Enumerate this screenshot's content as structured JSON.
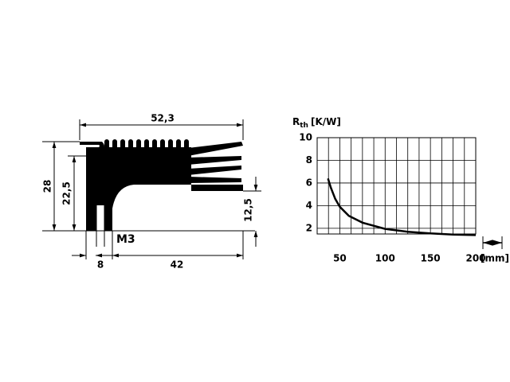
{
  "drawing": {
    "dimensions": {
      "overall_width": "52,3",
      "overall_height": "28",
      "fin_height": "22,5",
      "right_height": "12,5",
      "slot": "8",
      "base": "42",
      "thread": "M3"
    }
  },
  "chart_data": {
    "type": "line",
    "ylabel_symbol": "R",
    "ylabel_subscript": "th",
    "ylabel_unit": "[K/W]",
    "xlabel_unit": "[mm]",
    "x": [
      37,
      40,
      45,
      50,
      60,
      75,
      100,
      125,
      150,
      175,
      200
    ],
    "values": [
      6.4,
      5.6,
      4.6,
      3.9,
      3.1,
      2.5,
      1.95,
      1.7,
      1.55,
      1.45,
      1.4
    ],
    "color": "#000000",
    "xlim": [
      25,
      200
    ],
    "xticks": [
      50,
      100,
      150,
      200
    ],
    "xgrid": [
      37.5,
      50,
      62.5,
      75,
      87.5,
      100,
      112.5,
      125,
      137.5,
      150,
      162.5,
      175,
      187.5
    ],
    "ylim": [
      1.5,
      10
    ],
    "yticks": [
      2,
      4,
      6,
      8,
      10
    ],
    "grid": true
  }
}
